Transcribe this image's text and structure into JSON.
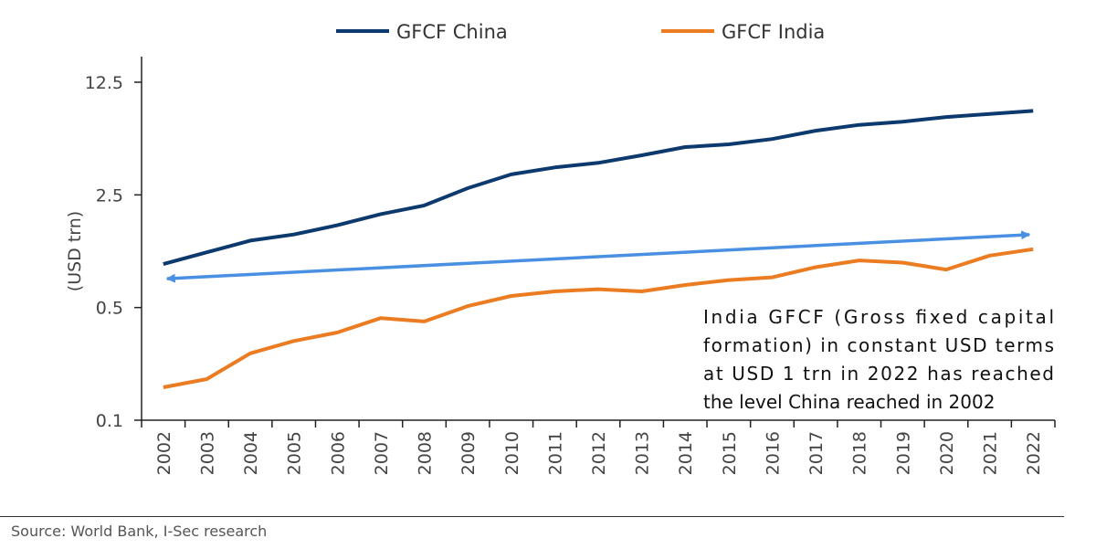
{
  "chart_data": {
    "type": "line",
    "title": "",
    "xlabel": "",
    "ylabel": "(USD trn)",
    "yscale": "log",
    "ylim": [
      0.1,
      12.5
    ],
    "yticks": [
      "12.5",
      "2.5",
      "0.5",
      "0.1"
    ],
    "categories": [
      "2002",
      "2003",
      "2004",
      "2005",
      "2006",
      "2007",
      "2008",
      "2009",
      "2010",
      "2011",
      "2012",
      "2013",
      "2014",
      "2015",
      "2016",
      "2017",
      "2018",
      "2019",
      "2020",
      "2021",
      "2022"
    ],
    "series": [
      {
        "name": "GFCF China",
        "color": "#0d3a6e",
        "values": [
          0.93,
          1.1,
          1.3,
          1.42,
          1.62,
          1.9,
          2.15,
          2.75,
          3.35,
          3.7,
          3.95,
          4.4,
          4.95,
          5.15,
          5.55,
          6.25,
          6.8,
          7.1,
          7.6,
          7.95,
          8.3
        ]
      },
      {
        "name": "GFCF India",
        "color": "#ec7c22",
        "values": [
          0.16,
          0.18,
          0.26,
          0.31,
          0.35,
          0.43,
          0.41,
          0.51,
          0.59,
          0.63,
          0.65,
          0.63,
          0.69,
          0.74,
          0.77,
          0.89,
          0.98,
          0.95,
          0.86,
          1.05,
          1.15
        ]
      }
    ],
    "arrow": {
      "color": "#4a90e2",
      "from_year": "2022",
      "to_year": "2002"
    },
    "annotation": [
      "India GFCF (Gross fixed capital",
      "formation) in constant USD terms",
      "at USD 1 trn in 2022 has reached",
      "the level China reached in 2002"
    ]
  },
  "source": "Source: World Bank, I-Sec research"
}
